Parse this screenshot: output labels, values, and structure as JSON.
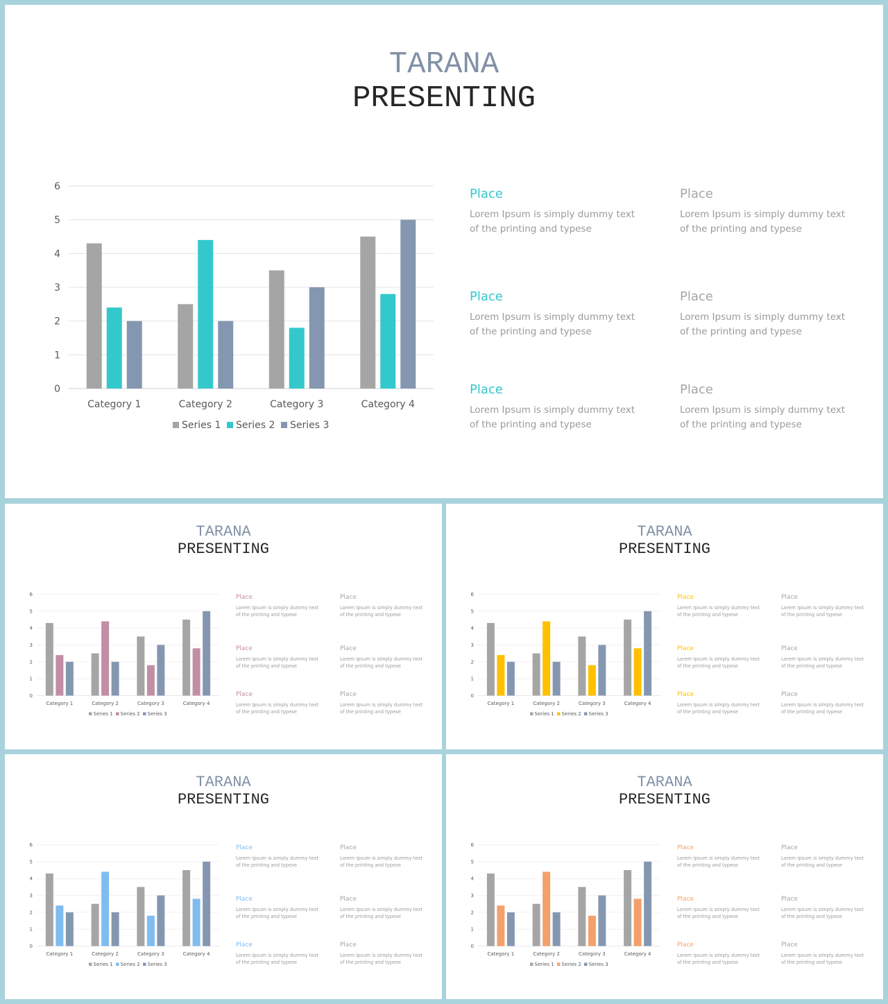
{
  "title_line1": "TARANA",
  "title_line2": "PRESENTING",
  "chart_data": {
    "type": "bar",
    "categories": [
      "Category 1",
      "Category 2",
      "Category 3",
      "Category 4"
    ],
    "series": [
      {
        "name": "Series 1",
        "values": [
          4.3,
          2.5,
          3.5,
          4.5
        ]
      },
      {
        "name": "Series 2",
        "values": [
          2.4,
          4.4,
          1.8,
          2.8
        ]
      },
      {
        "name": "Series 3",
        "values": [
          2,
          2,
          3,
          5
        ]
      }
    ],
    "ylim": [
      0,
      6
    ],
    "yticks": [
      "0",
      "1",
      "2",
      "3",
      "4",
      "5",
      "6"
    ],
    "grid": true,
    "legend": "bottom"
  },
  "text_blocks": [
    {
      "heading": "Place",
      "line1": "Lorem Ipsum is simply dummy text",
      "line2": "of the printing and typese"
    },
    {
      "heading": "Place",
      "line1": "Lorem Ipsum is simply dummy text",
      "line2": "of the printing and typese"
    },
    {
      "heading": "Place",
      "line1": "Lorem Ipsum is simply dummy text",
      "line2": "of the printing and typese"
    },
    {
      "heading": "Place",
      "line1": "Lorem Ipsum is simply dummy text",
      "line2": "of the printing and typese"
    },
    {
      "heading": "Place",
      "line1": "Lorem Ipsum is simply dummy text",
      "line2": "of the printing and typese"
    },
    {
      "heading": "Place",
      "line1": "Lorem Ipsum is simply dummy text",
      "line2": "of the printing and typese"
    }
  ],
  "colors": {
    "background": "#a9d3dc",
    "title_accent": "#8191a6",
    "title_dark": "#262626",
    "series1": "#a5a5a5",
    "series3": "#8597b0",
    "neutral_heading": "#a5a5a5"
  },
  "slides": [
    {
      "accent": "#33c9cc"
    },
    {
      "accent": "#c28ea5"
    },
    {
      "accent": "#ffc000"
    },
    {
      "accent": "#7fbcf0"
    },
    {
      "accent": "#f4a06c"
    }
  ]
}
